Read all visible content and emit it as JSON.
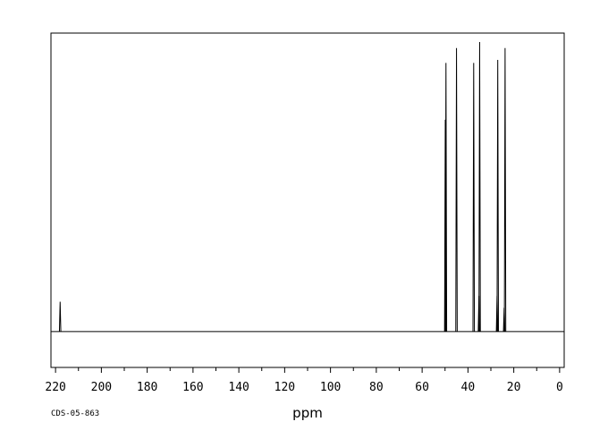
{
  "chart_data": {
    "type": "line",
    "title": "",
    "xlabel": "ppm",
    "ylabel": "",
    "xlim": [
      222,
      -2
    ],
    "x_reversed": true,
    "ylim": [
      -0.12,
      1.0
    ],
    "grid": false,
    "legend": "none",
    "x_ticks": [
      220,
      200,
      180,
      160,
      140,
      120,
      100,
      80,
      60,
      40,
      20,
      0
    ],
    "x_tick_labels": [
      "220",
      "200",
      "180",
      "160",
      "140",
      "120",
      "100",
      "80",
      "60",
      "40",
      "20",
      "0"
    ],
    "minor_tick_step": 10,
    "baseline": 0.0,
    "peaks": [
      {
        "ppm": 218.0,
        "intensity": 0.1
      },
      {
        "ppm": 49.9,
        "intensity": 0.71
      },
      {
        "ppm": 49.6,
        "intensity": 0.9
      },
      {
        "ppm": 45.0,
        "intensity": 0.95
      },
      {
        "ppm": 37.5,
        "intensity": 0.9
      },
      {
        "ppm": 35.2,
        "intensity": 0.12
      },
      {
        "ppm": 34.9,
        "intensity": 0.97
      },
      {
        "ppm": 27.3,
        "intensity": 0.12
      },
      {
        "ppm": 27.0,
        "intensity": 0.91
      },
      {
        "ppm": 24.2,
        "intensity": 0.08
      },
      {
        "ppm": 23.8,
        "intensity": 0.95
      }
    ],
    "colors": {
      "line": "#000000",
      "frame": "#000000",
      "background": "#ffffff"
    }
  },
  "footer": {
    "code": "CDS-05-863"
  }
}
